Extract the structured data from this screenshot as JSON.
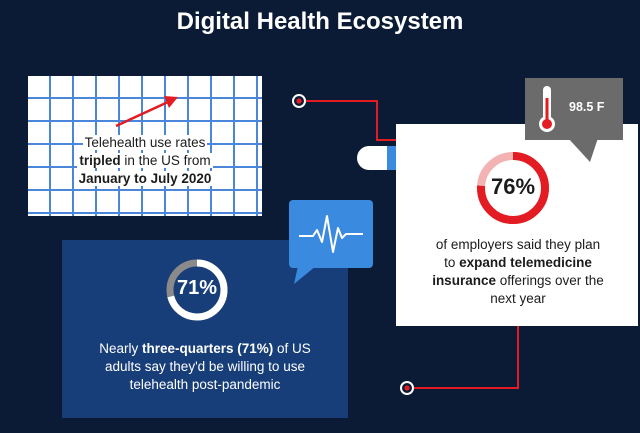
{
  "title": "Digital Health Ecosystem",
  "telehealth": {
    "line1": "Telehealth use rates",
    "line2_bold": "tripled",
    "line2_rest": " in the US from",
    "line3_bold": "January to July 2020"
  },
  "employers": {
    "percent_label": "76%",
    "percent_value": 76,
    "line1": "of employers said they plan",
    "line2_pre": "to ",
    "line2_bold": "expand telemedicine",
    "line3_bold": "insurance",
    "line3_rest": " offerings over the",
    "line4": "next year"
  },
  "thermometer": {
    "reading": "98.5 F"
  },
  "adults": {
    "percent_label": "71%",
    "percent_value": 71,
    "line1_pre": "Nearly ",
    "line1_bold": "three-quarters (71%)",
    "line1_rest": " of US",
    "line2": "adults say they'd be willing to use",
    "line3": "telehealth post-pandemic"
  },
  "colors": {
    "background": "#0b1b35",
    "accent_red": "#e31b23",
    "ring_track": "#f4b3b3",
    "ring_gray": "#8a8a8a",
    "grid_blue": "#4a86d9",
    "card_blue": "#173e79",
    "bubble_blue": "#3a8be0",
    "bubble_gray": "#6b6b6b"
  },
  "icons": {
    "trend": "trend-arrow-icon",
    "thermometer": "thermometer-icon",
    "heartbeat": "heartbeat-icon",
    "pill": "pill-icon"
  }
}
